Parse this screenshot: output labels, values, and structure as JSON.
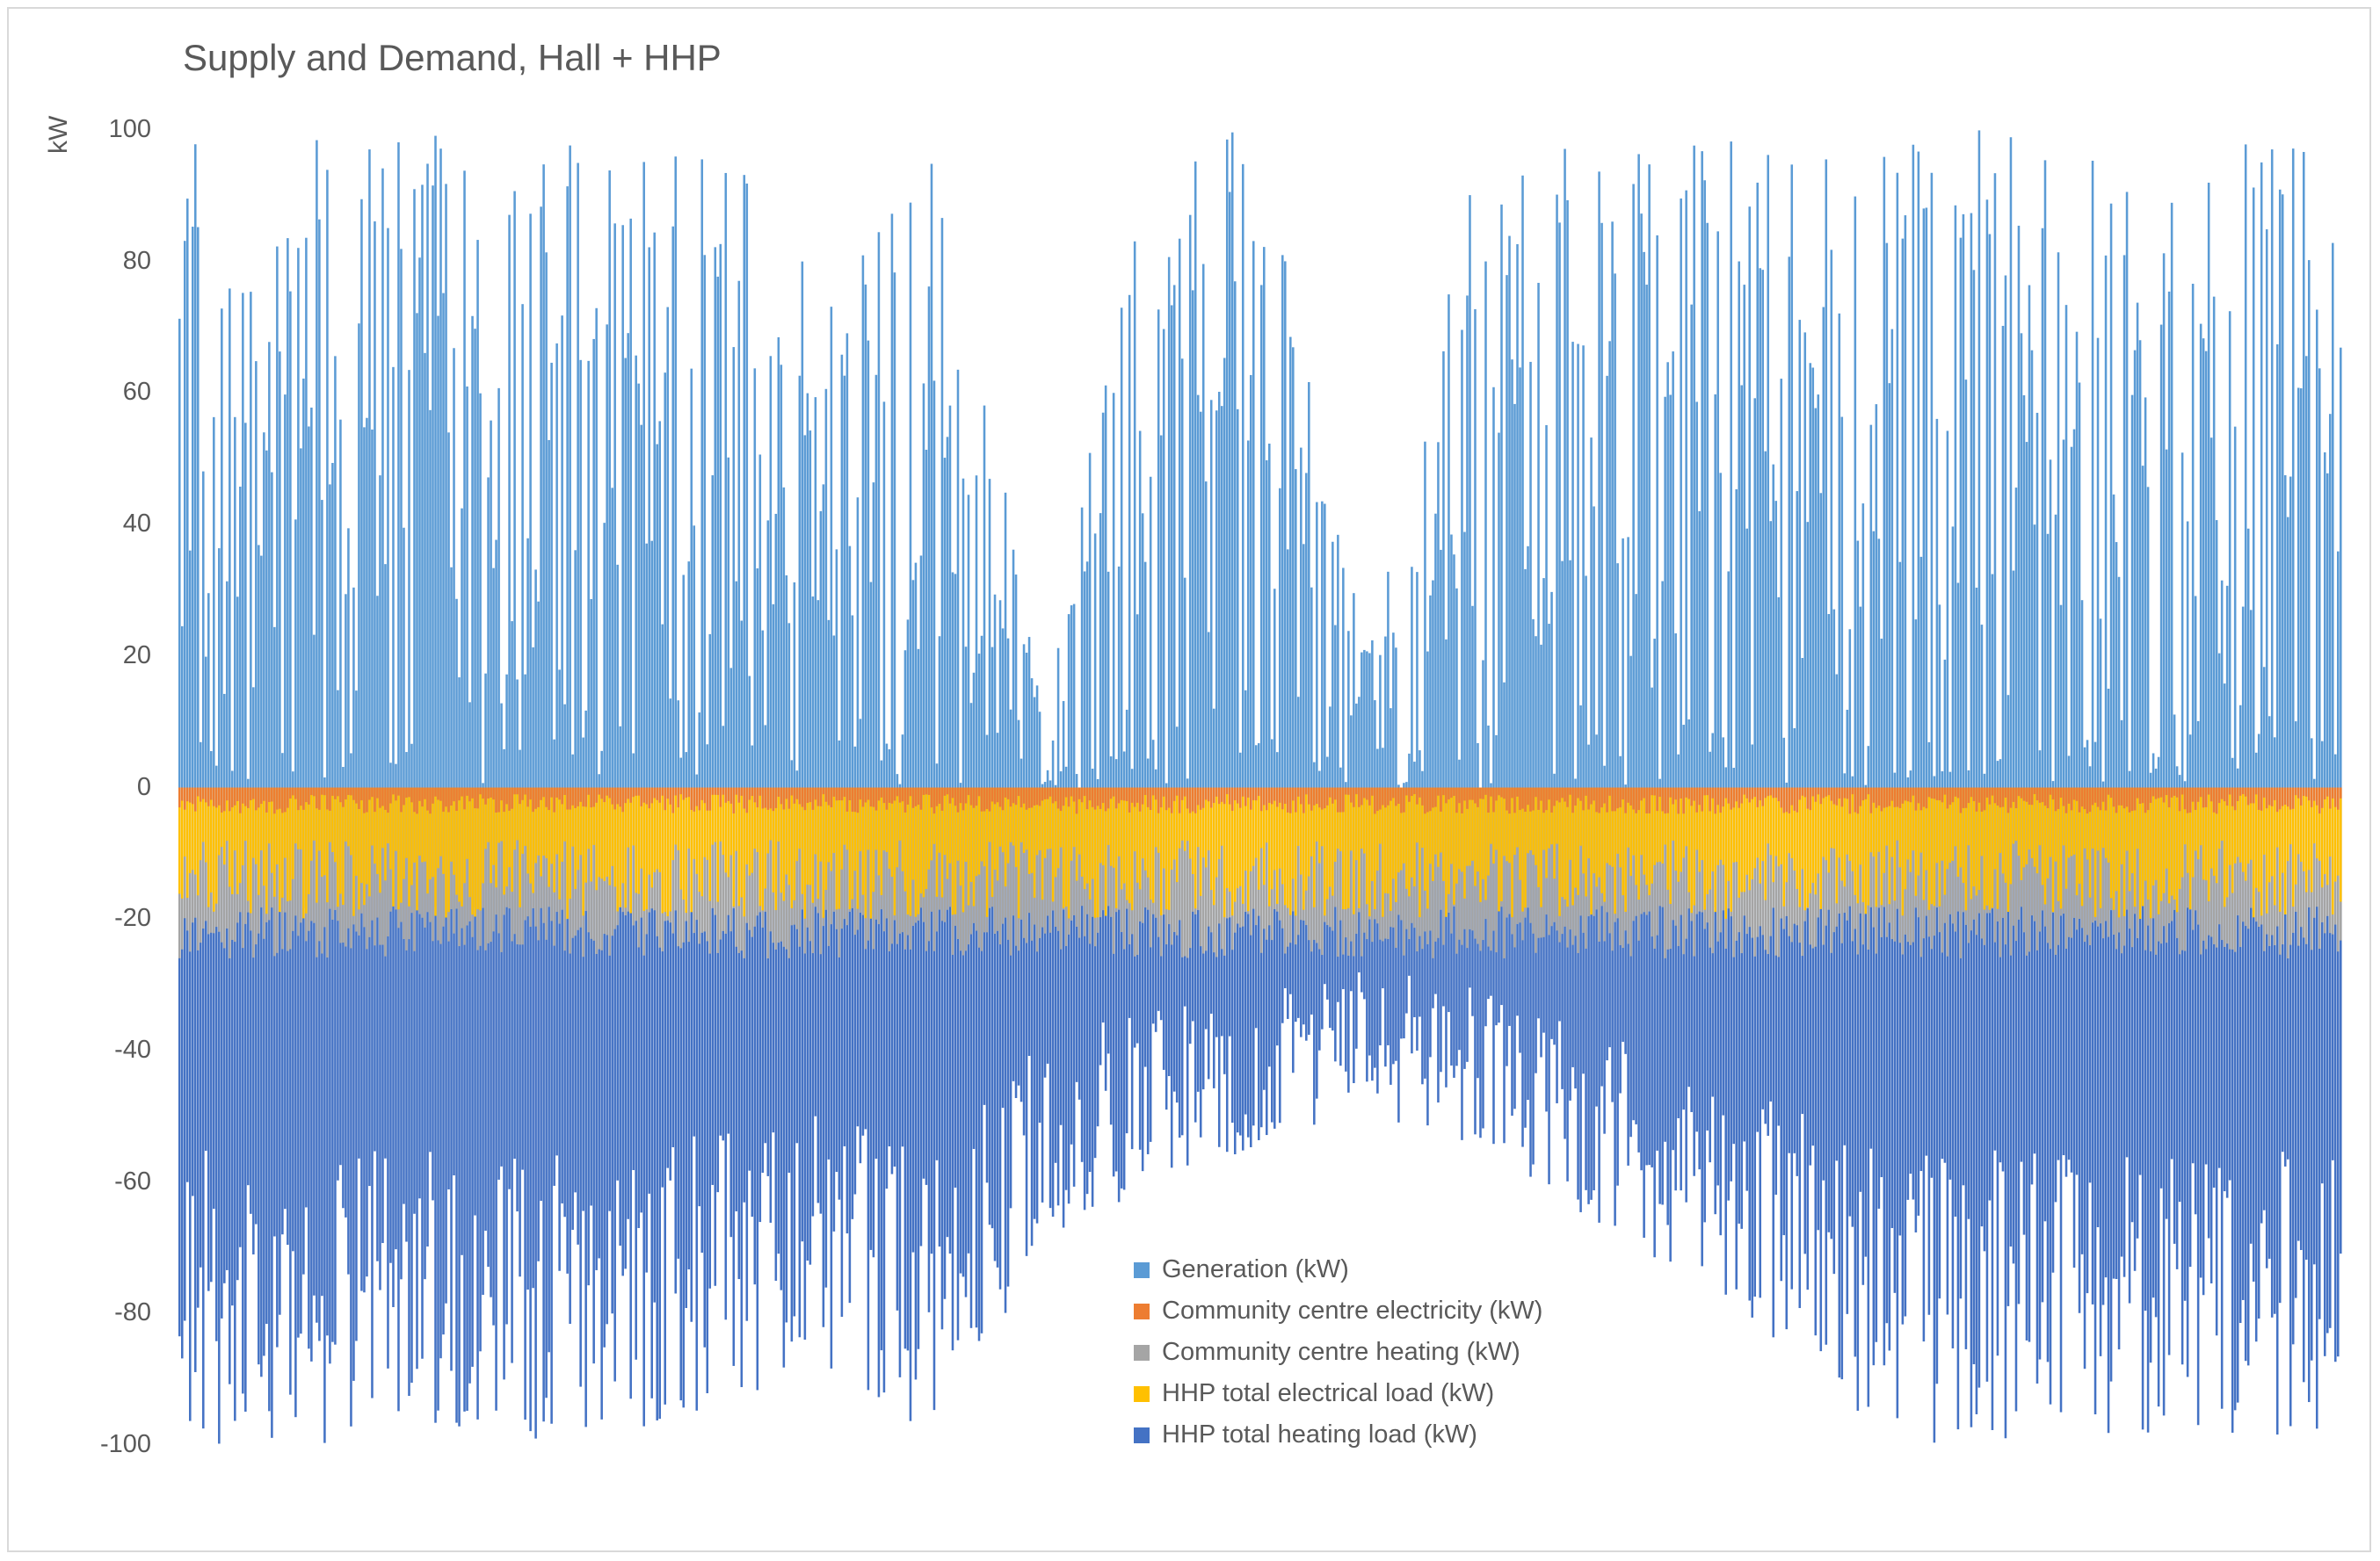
{
  "chart_data": {
    "type": "bar",
    "stacked": true,
    "title": "Supply and Demand, Hall + HHP",
    "ylabel": "kW",
    "xlabel": "",
    "ylim": [
      -100,
      100
    ],
    "yticks": [
      100,
      80,
      60,
      40,
      20,
      0,
      -20,
      -40,
      -60,
      -80,
      -100
    ],
    "grid": false,
    "legend_position": "bottom-center",
    "series": [
      {
        "name": "Generation (kW)",
        "color": "#5B9BD5",
        "sign": "positive",
        "envelope_x_fraction": [
          0.0,
          0.1,
          0.15,
          0.2,
          0.25,
          0.3,
          0.35,
          0.4,
          0.45,
          0.5,
          0.55,
          0.6,
          0.65,
          0.7,
          0.75,
          0.8,
          0.85,
          0.9,
          0.95,
          1.0
        ],
        "envelope_max": [
          100,
          100,
          100,
          100,
          100,
          75,
          100,
          15,
          100,
          100,
          20,
          100,
          100,
          100,
          100,
          100,
          100,
          100,
          100,
          100
        ]
      },
      {
        "name": "Community centre electricity (kW)",
        "color": "#ED7D31",
        "sign": "negative",
        "typical_range": [
          0,
          -4
        ]
      },
      {
        "name": "Community centre heating (kW)",
        "color": "#A5A5A5",
        "sign": "negative",
        "typical_range": [
          0,
          -26
        ]
      },
      {
        "name": "HHP total electrical load (kW)",
        "color": "#FFC000",
        "sign": "negative",
        "typical_range": [
          -2,
          -25
        ]
      },
      {
        "name": "HHP total heating load (kW)",
        "color": "#4472C4",
        "sign": "negative",
        "envelope_x_fraction": [
          0.0,
          0.1,
          0.2,
          0.3,
          0.35,
          0.4,
          0.45,
          0.5,
          0.55,
          0.6,
          0.65,
          0.7,
          0.75,
          0.8,
          0.85,
          0.9,
          1.0
        ],
        "envelope_min": [
          -100,
          -100,
          -100,
          -90,
          -100,
          -70,
          -60,
          -55,
          -50,
          -55,
          -65,
          -75,
          -90,
          -100,
          -100,
          -100,
          -100
        ]
      }
    ]
  }
}
